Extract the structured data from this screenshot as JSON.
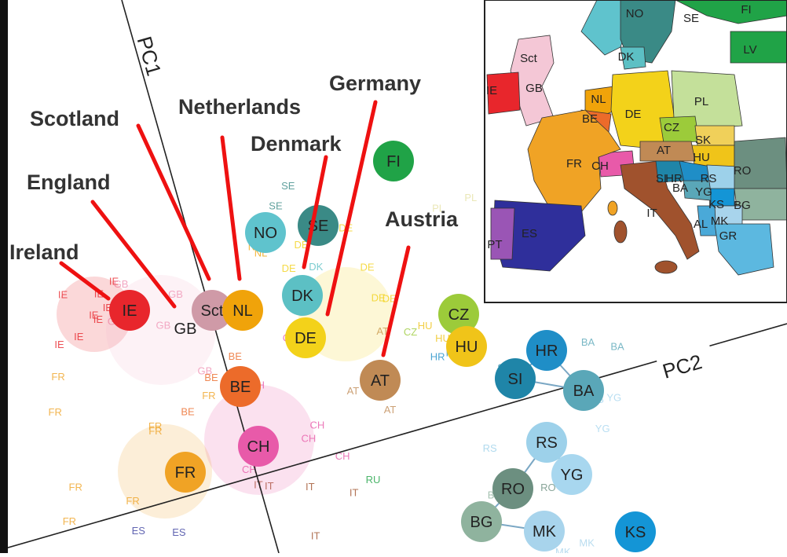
{
  "axes": {
    "pc1_label": "PC1",
    "pc2_label": "PC2"
  },
  "annotations": [
    {
      "id": "ireland",
      "label": "Ireland"
    },
    {
      "id": "england",
      "label": "England"
    },
    {
      "id": "scotland",
      "label": "Scotland"
    },
    {
      "id": "netherlands",
      "label": "Netherlands"
    },
    {
      "id": "denmark",
      "label": "Denmark"
    },
    {
      "id": "germany",
      "label": "Germany"
    },
    {
      "id": "austria",
      "label": "Austria"
    }
  ],
  "centroids": [
    {
      "code": "IE",
      "color": "#e8262c"
    },
    {
      "code": "GB",
      "color": "#f4b9cf"
    },
    {
      "code": "Sct",
      "color": "#cf9aa7"
    },
    {
      "code": "NL",
      "color": "#f0a30a"
    },
    {
      "code": "NO",
      "color": "#5fc3cd"
    },
    {
      "code": "SE",
      "color": "#3a8a86"
    },
    {
      "code": "FI",
      "color": "#20a347"
    },
    {
      "code": "DK",
      "color": "#5cc0c4"
    },
    {
      "code": "DE",
      "color": "#f3d21a"
    },
    {
      "code": "CZ",
      "color": "#9ccb3a"
    },
    {
      "code": "HU",
      "color": "#f0c419"
    },
    {
      "code": "AT",
      "color": "#c08a55"
    },
    {
      "code": "BE",
      "color": "#ec6b2a"
    },
    {
      "code": "CH",
      "color": "#e85aa9"
    },
    {
      "code": "FR",
      "color": "#f0a325"
    },
    {
      "code": "HR",
      "color": "#1f8ec7"
    },
    {
      "code": "SI",
      "color": "#1f85a8"
    },
    {
      "code": "BA",
      "color": "#5aa7b8"
    },
    {
      "code": "RS",
      "color": "#9dd1ea"
    },
    {
      "code": "YG",
      "color": "#a8d7ef"
    },
    {
      "code": "RO",
      "color": "#6c8f80"
    },
    {
      "code": "BG",
      "color": "#8fb39e"
    },
    {
      "code": "MK",
      "color": "#a8d4ec"
    },
    {
      "code": "KS",
      "color": "#1495d6"
    }
  ],
  "map_labels": [
    {
      "code": "NO"
    },
    {
      "code": "SE"
    },
    {
      "code": "FI"
    },
    {
      "code": "DK"
    },
    {
      "code": "LV"
    },
    {
      "code": "Sct"
    },
    {
      "code": "GB"
    },
    {
      "code": "IE"
    },
    {
      "code": "NL"
    },
    {
      "code": "BE"
    },
    {
      "code": "DE"
    },
    {
      "code": "PL"
    },
    {
      "code": "CZ"
    },
    {
      "code": "SK"
    },
    {
      "code": "HU"
    },
    {
      "code": "AT"
    },
    {
      "code": "FR"
    },
    {
      "code": "CH"
    },
    {
      "code": "RO"
    },
    {
      "code": "SI"
    },
    {
      "code": "HR"
    },
    {
      "code": "RS"
    },
    {
      "code": "BA"
    },
    {
      "code": "YG"
    },
    {
      "code": "BG"
    },
    {
      "code": "KS"
    },
    {
      "code": "MK"
    },
    {
      "code": "IT"
    },
    {
      "code": "AL"
    },
    {
      "code": "GR"
    },
    {
      "code": "ES"
    },
    {
      "code": "PT"
    }
  ],
  "scatter_labels": [
    {
      "t": "IE",
      "c": "#e8262c"
    },
    {
      "t": "IE",
      "c": "#e8262c"
    },
    {
      "t": "IE",
      "c": "#e8262c"
    },
    {
      "t": "IE",
      "c": "#e8262c"
    },
    {
      "t": "IE",
      "c": "#e8262c"
    },
    {
      "t": "IE",
      "c": "#e8262c"
    },
    {
      "t": "IE",
      "c": "#e8262c"
    },
    {
      "t": "IE",
      "c": "#e8262c"
    },
    {
      "t": "GB",
      "c": "#f08fb2"
    },
    {
      "t": "GB",
      "c": "#f08fb2"
    },
    {
      "t": "GB",
      "c": "#f08fb2"
    },
    {
      "t": "GB",
      "c": "#f08fb2"
    },
    {
      "t": "GB",
      "c": "#f08fb2"
    },
    {
      "t": "GB",
      "c": "#f08fb2"
    },
    {
      "t": "BE",
      "c": "#ec6b2a"
    },
    {
      "t": "BE",
      "c": "#ec6b2a"
    },
    {
      "t": "BE",
      "c": "#ec6b2a"
    },
    {
      "t": "NL",
      "c": "#f0a30a"
    },
    {
      "t": "NL",
      "c": "#f0a30a"
    },
    {
      "t": "SE",
      "c": "#3a8a86"
    },
    {
      "t": "SE",
      "c": "#3a8a86"
    },
    {
      "t": "NO",
      "c": "#5fc3cd"
    },
    {
      "t": "NO",
      "c": "#5fc3cd"
    },
    {
      "t": "DK",
      "c": "#5cc0c4"
    },
    {
      "t": "DE",
      "c": "#f3d21a"
    },
    {
      "t": "DE",
      "c": "#f3d21a"
    },
    {
      "t": "DE",
      "c": "#f3d21a"
    },
    {
      "t": "DE",
      "c": "#f3d21a"
    },
    {
      "t": "DE",
      "c": "#f3d21a"
    },
    {
      "t": "DE",
      "c": "#f3d21a"
    },
    {
      "t": "PL",
      "c": "#e6e2a6"
    },
    {
      "t": "PL",
      "c": "#e6e2a6"
    },
    {
      "t": "CZ",
      "c": "#9ccb3a"
    },
    {
      "t": "HU",
      "c": "#f0c419"
    },
    {
      "t": "HU",
      "c": "#f0c419"
    },
    {
      "t": "AT",
      "c": "#c08a55"
    },
    {
      "t": "AT",
      "c": "#c08a55"
    },
    {
      "t": "AT",
      "c": "#c08a55"
    },
    {
      "t": "CH",
      "c": "#e85aa9"
    },
    {
      "t": "CH",
      "c": "#e85aa9"
    },
    {
      "t": "CH",
      "c": "#e85aa9"
    },
    {
      "t": "CH",
      "c": "#e85aa9"
    },
    {
      "t": "CH",
      "c": "#e85aa9"
    },
    {
      "t": "CH",
      "c": "#e85aa9"
    },
    {
      "t": "CH",
      "c": "#e85aa9"
    },
    {
      "t": "FR",
      "c": "#f0a325"
    },
    {
      "t": "FR",
      "c": "#f0a325"
    },
    {
      "t": "FR",
      "c": "#f0a325"
    },
    {
      "t": "FR",
      "c": "#f0a325"
    },
    {
      "t": "FR",
      "c": "#f0a325"
    },
    {
      "t": "FR",
      "c": "#f0a325"
    },
    {
      "t": "FR",
      "c": "#f0a325"
    },
    {
      "t": "FR",
      "c": "#f0a325"
    },
    {
      "t": "FR",
      "c": "#f0a325"
    },
    {
      "t": "ES",
      "c": "#3a3f9f"
    },
    {
      "t": "ES",
      "c": "#3a3f9f"
    },
    {
      "t": "IT",
      "c": "#a0522d"
    },
    {
      "t": "IT",
      "c": "#a0522d"
    },
    {
      "t": "IT",
      "c": "#a0522d"
    },
    {
      "t": "IT",
      "c": "#a0522d"
    },
    {
      "t": "IT",
      "c": "#a0522d"
    },
    {
      "t": "RU",
      "c": "#20a347"
    },
    {
      "t": "HR",
      "c": "#1f8ec7"
    },
    {
      "t": "HR",
      "c": "#1f8ec7"
    },
    {
      "t": "BA",
      "c": "#5aa7b8"
    },
    {
      "t": "BA",
      "c": "#5aa7b8"
    },
    {
      "t": "YG",
      "c": "#a8d7ef"
    },
    {
      "t": "YG",
      "c": "#a8d7ef"
    },
    {
      "t": "YG",
      "c": "#a8d7ef"
    },
    {
      "t": "YG",
      "c": "#a8d7ef"
    },
    {
      "t": "RO",
      "c": "#6c8f80"
    },
    {
      "t": "MK",
      "c": "#a8d4ec"
    },
    {
      "t": "MK",
      "c": "#a8d4ec"
    },
    {
      "t": "BG",
      "c": "#8fb39e"
    },
    {
      "t": "RS",
      "c": "#9dd1ea"
    },
    {
      "t": "SI",
      "c": "#1f85a8"
    }
  ]
}
